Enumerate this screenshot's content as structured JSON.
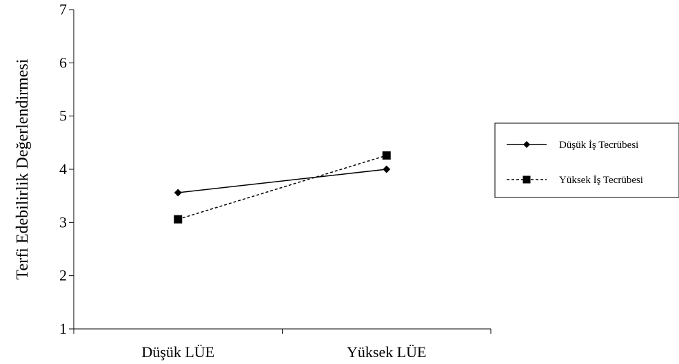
{
  "chart_data": {
    "type": "line",
    "title": "",
    "xlabel": "",
    "ylabel": "Terfi Edebilirlik Değerlendirmesi",
    "categories": [
      "Düşük LÜE",
      "Yüksek LÜE"
    ],
    "ylim": [
      1,
      7
    ],
    "yticks": [
      1,
      2,
      3,
      4,
      5,
      6,
      7
    ],
    "grid": false,
    "legend_position": "right",
    "series": [
      {
        "name": "Düşük İş Tecrübesi",
        "values": [
          3.56,
          4.0
        ],
        "marker": "diamond",
        "line_style": "solid",
        "color": "#000000"
      },
      {
        "name": "Yüksek İş Tecrübesi",
        "values": [
          3.06,
          4.26
        ],
        "marker": "square",
        "line_style": "dashed",
        "color": "#000000"
      }
    ]
  }
}
